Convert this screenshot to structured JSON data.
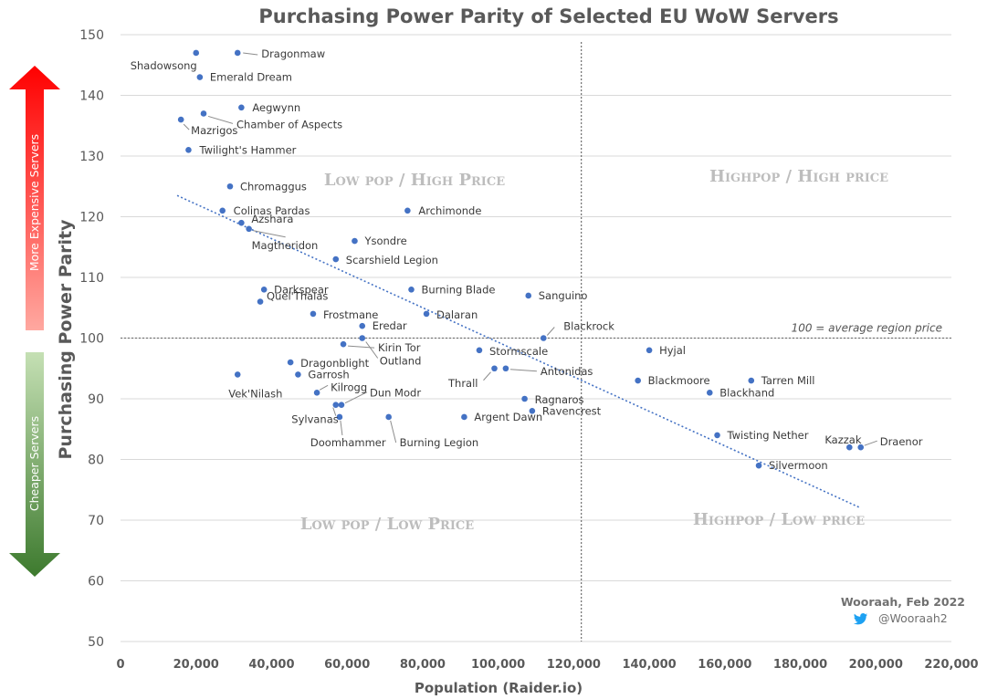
{
  "chart_data": {
    "type": "scatter",
    "title": "Purchasing Power Parity of Selected EU WoW Servers",
    "xlabel": "Population (Raider.io)",
    "ylabel": "Purchasing Power Parity",
    "xlim": [
      0,
      220000
    ],
    "ylim": [
      50,
      150
    ],
    "x_ticks": [
      0,
      20000,
      40000,
      60000,
      80000,
      100000,
      120000,
      140000,
      160000,
      180000,
      200000,
      220000
    ],
    "x_tick_labels": [
      "0",
      "20,000",
      "40,000",
      "60,000",
      "80,000",
      "100,000",
      "120,000",
      "140,000",
      "160,000",
      "180,000",
      "200,000",
      "220,000"
    ],
    "y_ticks": [
      50,
      60,
      70,
      80,
      90,
      100,
      110,
      120,
      130,
      140,
      150
    ],
    "y_tick_labels": [
      "50",
      "60",
      "70",
      "80",
      "90",
      "100",
      "110",
      "120",
      "130",
      "140",
      "150"
    ],
    "grid": true,
    "point_color": "#4472c4",
    "trendline": {
      "label": "",
      "from": [
        15000,
        123.5
      ],
      "to": [
        196000,
        72
      ],
      "color": "#4472c4"
    },
    "reference_lines": {
      "horizontal": {
        "y": 100,
        "label": "100 = average region price"
      },
      "vertical": {
        "x": 122000
      }
    },
    "quadrant_labels": {
      "top_left": "Low pop / High Price",
      "top_right": "Highpop / High price",
      "bottom_left": "Low pop / Low Price",
      "bottom_right": "Highpop / Low price"
    },
    "side_arrows": {
      "up_text": "More Expensive Servers",
      "down_text": "Cheaper Servers",
      "up_color": "#ff0000",
      "down_color": "#3d7a2e"
    },
    "credit": {
      "author": "Wooraah, Feb 2022",
      "handle": "@Wooraah2",
      "icon": "twitter-bird-icon"
    },
    "points": [
      {
        "name": "Shadowsong",
        "x": 20000,
        "y": 147
      },
      {
        "name": "Dragonmaw",
        "x": 31000,
        "y": 147
      },
      {
        "name": "Emerald Dream",
        "x": 21000,
        "y": 143
      },
      {
        "name": "Aegwynn",
        "x": 32000,
        "y": 138
      },
      {
        "name": "Chamber of Aspects",
        "x": 22000,
        "y": 137
      },
      {
        "name": "Mazrigos",
        "x": 16000,
        "y": 136
      },
      {
        "name": "Twilight's Hammer",
        "x": 18000,
        "y": 131
      },
      {
        "name": "Chromaggus",
        "x": 29000,
        "y": 125
      },
      {
        "name": "Colinas Pardas",
        "x": 27000,
        "y": 121
      },
      {
        "name": "Archimonde",
        "x": 76000,
        "y": 121
      },
      {
        "name": "Azshara",
        "x": 32000,
        "y": 119
      },
      {
        "name": "Magtheridon",
        "x": 34000,
        "y": 118
      },
      {
        "name": "Ysondre",
        "x": 62000,
        "y": 116
      },
      {
        "name": "Scarshield Legion",
        "x": 57000,
        "y": 113
      },
      {
        "name": "Darkspear",
        "x": 38000,
        "y": 108
      },
      {
        "name": "Burning Blade",
        "x": 77000,
        "y": 108
      },
      {
        "name": "Sanguino",
        "x": 108000,
        "y": 107
      },
      {
        "name": "Quel'Thalas",
        "x": 37000,
        "y": 106
      },
      {
        "name": "Frostmane",
        "x": 51000,
        "y": 104
      },
      {
        "name": "Dalaran",
        "x": 81000,
        "y": 104
      },
      {
        "name": "Eredar",
        "x": 64000,
        "y": 102
      },
      {
        "name": "Blackrock",
        "x": 112000,
        "y": 100
      },
      {
        "name": "Outland",
        "x": 64000,
        "y": 100
      },
      {
        "name": "Kirin Tor",
        "x": 59000,
        "y": 99
      },
      {
        "name": "Stormscale",
        "x": 95000,
        "y": 98
      },
      {
        "name": "Hyjal",
        "x": 140000,
        "y": 98
      },
      {
        "name": "Dragonblight",
        "x": 45000,
        "y": 96
      },
      {
        "name": "Thrall",
        "x": 99000,
        "y": 95
      },
      {
        "name": "Antonidas",
        "x": 102000,
        "y": 95
      },
      {
        "name": "Vek'Nilash",
        "x": 31000,
        "y": 94
      },
      {
        "name": "Garrosh",
        "x": 47000,
        "y": 94
      },
      {
        "name": "Blackmoore",
        "x": 137000,
        "y": 93
      },
      {
        "name": "Tarren Mill",
        "x": 167000,
        "y": 93
      },
      {
        "name": "Kilrogg",
        "x": 52000,
        "y": 91
      },
      {
        "name": "Blackhand",
        "x": 156000,
        "y": 91
      },
      {
        "name": "Ragnaros",
        "x": 107000,
        "y": 90
      },
      {
        "name": "Sylvanas",
        "x": 57000,
        "y": 89
      },
      {
        "name": "Dun Modr",
        "x": 58500,
        "y": 89
      },
      {
        "name": "Ravencrest",
        "x": 109000,
        "y": 88
      },
      {
        "name": "Doomhammer",
        "x": 58000,
        "y": 87
      },
      {
        "name": "Burning Legion",
        "x": 71000,
        "y": 87
      },
      {
        "name": "Argent Dawn",
        "x": 91000,
        "y": 87
      },
      {
        "name": "Twisting Nether",
        "x": 158000,
        "y": 84
      },
      {
        "name": "Kazzak",
        "x": 193000,
        "y": 82
      },
      {
        "name": "Draenor",
        "x": 196000,
        "y": 82
      },
      {
        "name": "Silvermoon",
        "x": 169000,
        "y": 79
      }
    ]
  }
}
